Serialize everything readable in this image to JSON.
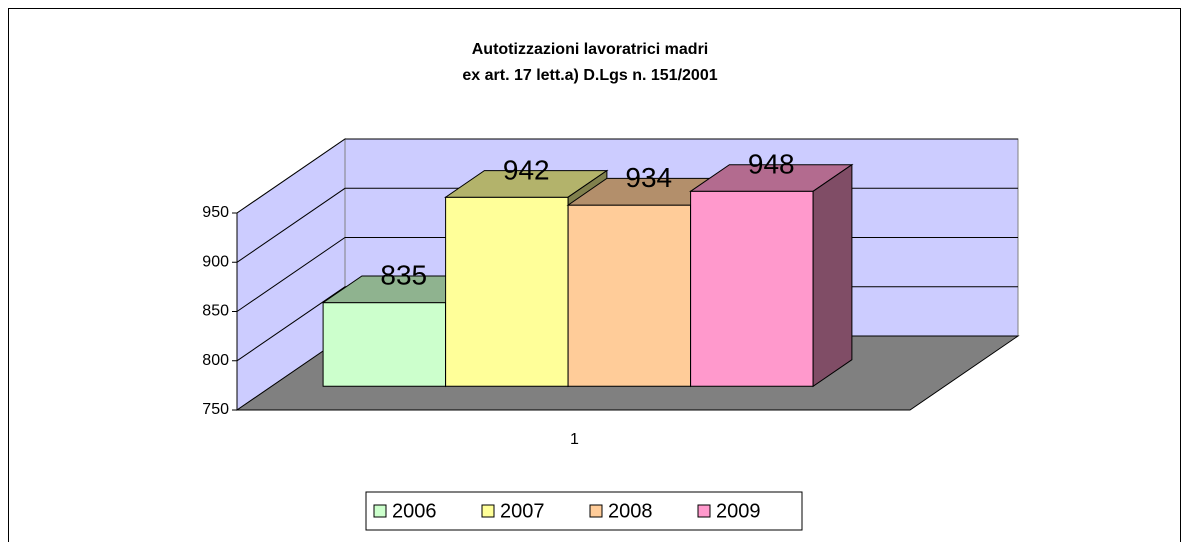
{
  "chart_data": {
    "type": "bar3d",
    "title": "Autotizzazioni lavoratrici madri",
    "subtitle": "ex art. 17 lett.a) D.Lgs n. 151/2001",
    "categories": [
      "1"
    ],
    "series": [
      {
        "name": "2006",
        "color": "#ccffcc",
        "values": [
          835
        ]
      },
      {
        "name": "2007",
        "color": "#ffff99",
        "values": [
          942
        ]
      },
      {
        "name": "2008",
        "color": "#ffcc99",
        "values": [
          934
        ]
      },
      {
        "name": "2009",
        "color": "#ff99cc",
        "values": [
          948
        ]
      }
    ],
    "ylim": [
      750,
      950
    ],
    "yticks": [
      750,
      800,
      850,
      900,
      950
    ],
    "grid": true,
    "legend": "bottom"
  }
}
